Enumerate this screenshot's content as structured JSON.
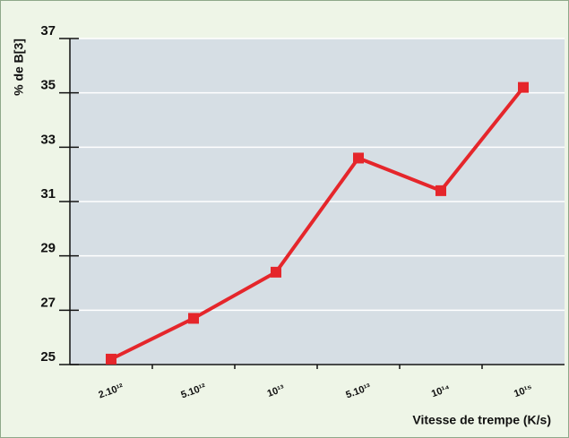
{
  "chart_data": {
    "type": "line",
    "ylabel": "% de B[3]",
    "xlabel": "Vitesse de trempe (K/s)",
    "categories": [
      "2.10¹²",
      "5.10¹²",
      "10¹³",
      "5.10¹³",
      "10¹⁴",
      "10¹⁵"
    ],
    "values": [
      25.2,
      26.7,
      28.4,
      32.6,
      31.4,
      35.2
    ],
    "color": "#e5262b",
    "ylim": [
      25,
      37
    ],
    "yticks": [
      25,
      27,
      29,
      31,
      33,
      35,
      37
    ],
    "grid": true
  }
}
